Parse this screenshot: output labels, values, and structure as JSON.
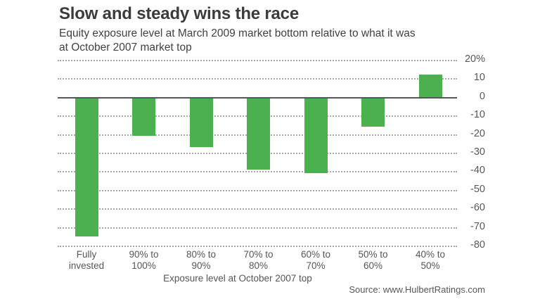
{
  "title": "Slow and steady wins the race",
  "subtitle_lines": [
    "Equity exposure level at March 2009 market bottom relative to what it was",
    "at October 2007 market top"
  ],
  "source": "Source: www.HulbertRatings.com",
  "colors": {
    "bar_green": "#4cb04f",
    "title_text": "#3b3b3d",
    "axis_text": "#56575b",
    "gridline": "#a6a8ab",
    "zero_line": "#55565a",
    "background": "#ffffff"
  },
  "chart_data": {
    "type": "bar",
    "title": "Slow and steady wins the race",
    "subtitle": "Equity exposure level at March 2009 market bottom relative to what it was at October 2007 market top",
    "categories": [
      "Fully invested",
      "90% to 100%",
      "80% to 90%",
      "70% to 80%",
      "60% to 70%",
      "50% to 60%",
      "40% to 50%"
    ],
    "category_lines": [
      [
        "Fully",
        "invested"
      ],
      [
        "90% to",
        "100%"
      ],
      [
        "80% to",
        "90%"
      ],
      [
        "70% to",
        "80%"
      ],
      [
        "60% to",
        "70%"
      ],
      [
        "50% to",
        "60%"
      ],
      [
        "40% to",
        "50%"
      ]
    ],
    "values": [
      -75,
      -21,
      -27,
      -39,
      -41,
      -16,
      12
    ],
    "unit": "percent",
    "xlabel": "Exposure level at October 2007 top",
    "ylabel": "",
    "ylim": [
      -80,
      20
    ],
    "ytick_values": [
      20,
      10,
      0,
      -10,
      -20,
      -30,
      -40,
      -50,
      -60,
      -70,
      -80
    ],
    "ytick_labels": [
      "20%",
      "10",
      "0",
      "-10",
      "-20",
      "-30",
      "-40",
      "-50",
      "-60",
      "-70",
      "-80"
    ],
    "grid": "horizontal dotted, solid zero line",
    "legend": "none",
    "ytick_side": "right",
    "bar_color": "#4cb04f",
    "source": "Source: www.HulbertRatings.com"
  }
}
